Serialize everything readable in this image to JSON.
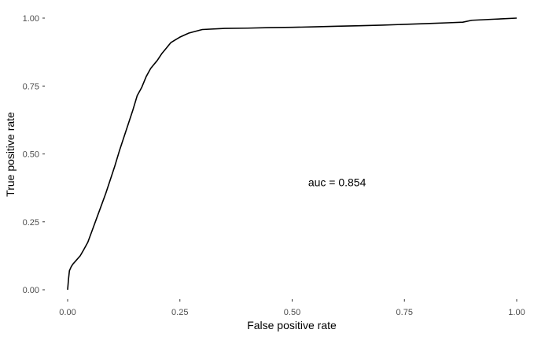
{
  "chart_data": {
    "type": "line",
    "title": "",
    "xlabel": "False positive rate",
    "ylabel": "True positive rate",
    "xlim": [
      0,
      1
    ],
    "ylim": [
      0,
      1
    ],
    "grid": false,
    "legend": "none",
    "x_ticks": [
      0,
      0.25,
      0.5,
      0.75,
      1
    ],
    "x_tick_labels": [
      "0.00",
      "0.25",
      "0.50",
      "0.75",
      "1.00"
    ],
    "y_ticks": [
      0,
      0.25,
      0.5,
      0.75,
      1
    ],
    "y_tick_labels": [
      "0.00",
      "0.25",
      "0.50",
      "0.75",
      "1.00"
    ],
    "annotation": {
      "text": "auc =  0.854",
      "x": 0.6,
      "y": 0.395
    },
    "series": [
      {
        "color": "#000000",
        "x": [
          0,
          0.002,
          0.004,
          0.008,
          0.012,
          0.02,
          0.028,
          0.035,
          0.045,
          0.055,
          0.065,
          0.075,
          0.085,
          0.095,
          0.105,
          0.115,
          0.125,
          0.135,
          0.145,
          0.155,
          0.165,
          0.17,
          0.175,
          0.18,
          0.185,
          0.19,
          0.195,
          0.2,
          0.21,
          0.22,
          0.23,
          0.24,
          0.25,
          0.27,
          0.3,
          0.35,
          0.4,
          0.45,
          0.5,
          0.55,
          0.6,
          0.65,
          0.7,
          0.75,
          0.8,
          0.85,
          0.88,
          0.9,
          0.95,
          1.0
        ],
        "y": [
          0,
          0.04,
          0.07,
          0.085,
          0.095,
          0.11,
          0.125,
          0.145,
          0.175,
          0.22,
          0.265,
          0.31,
          0.355,
          0.405,
          0.455,
          0.51,
          0.56,
          0.61,
          0.66,
          0.715,
          0.745,
          0.765,
          0.785,
          0.8,
          0.815,
          0.825,
          0.835,
          0.845,
          0.87,
          0.89,
          0.91,
          0.92,
          0.93,
          0.945,
          0.958,
          0.962,
          0.963,
          0.965,
          0.966,
          0.968,
          0.97,
          0.972,
          0.974,
          0.977,
          0.98,
          0.983,
          0.985,
          0.992,
          0.996,
          1.0
        ]
      }
    ]
  }
}
